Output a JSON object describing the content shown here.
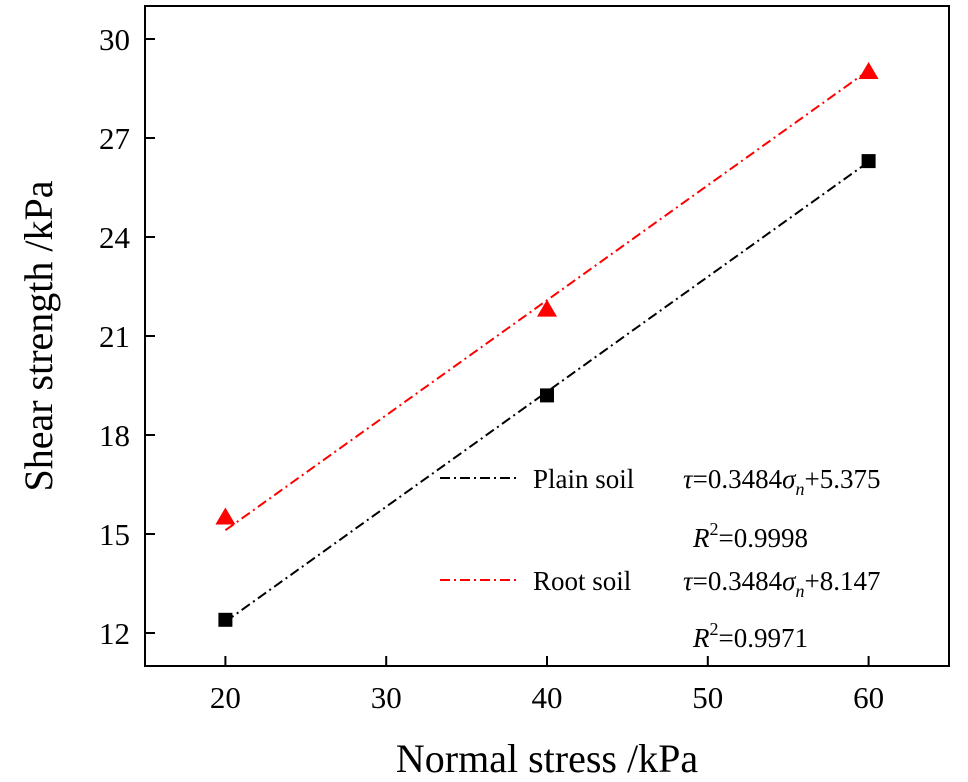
{
  "chart_data": {
    "type": "scatter",
    "xlabel": "Normal stress /kPa",
    "ylabel": "Shear strength /kPa",
    "xlim": [
      15,
      65
    ],
    "ylim": [
      11,
      31
    ],
    "xticks": [
      20,
      30,
      40,
      50,
      60
    ],
    "yticks": [
      12,
      15,
      18,
      21,
      24,
      27,
      30
    ],
    "grid": false,
    "legend_position": "bottom-right",
    "series": [
      {
        "name": "Plain soil",
        "color": "#000000",
        "marker": "square",
        "x": [
          20,
          40,
          60
        ],
        "values": [
          12.4,
          19.2,
          26.3
        ],
        "fit": {
          "slope": 0.3484,
          "intercept": 5.375
        },
        "equation": {
          "lhs": "τ",
          "eq_pre": "=0.3484",
          "sym": "σ",
          "sub": "n",
          "eq_post": "+5.375"
        },
        "r2": {
          "R": "R",
          "sup": "2",
          "value": "=0.9998"
        }
      },
      {
        "name": "Root soil",
        "color": "#ff0000",
        "marker": "triangle",
        "x": [
          20,
          40,
          60
        ],
        "values": [
          15.5,
          21.8,
          29.0
        ],
        "fit": {
          "slope": 0.3484,
          "intercept": 8.147
        },
        "equation": {
          "lhs": "τ",
          "eq_pre": "=0.3484",
          "sym": "σ",
          "sub": "n",
          "eq_post": "+8.147"
        },
        "r2": {
          "R": "R",
          "sup": "2",
          "value": "=0.9971"
        }
      }
    ]
  }
}
